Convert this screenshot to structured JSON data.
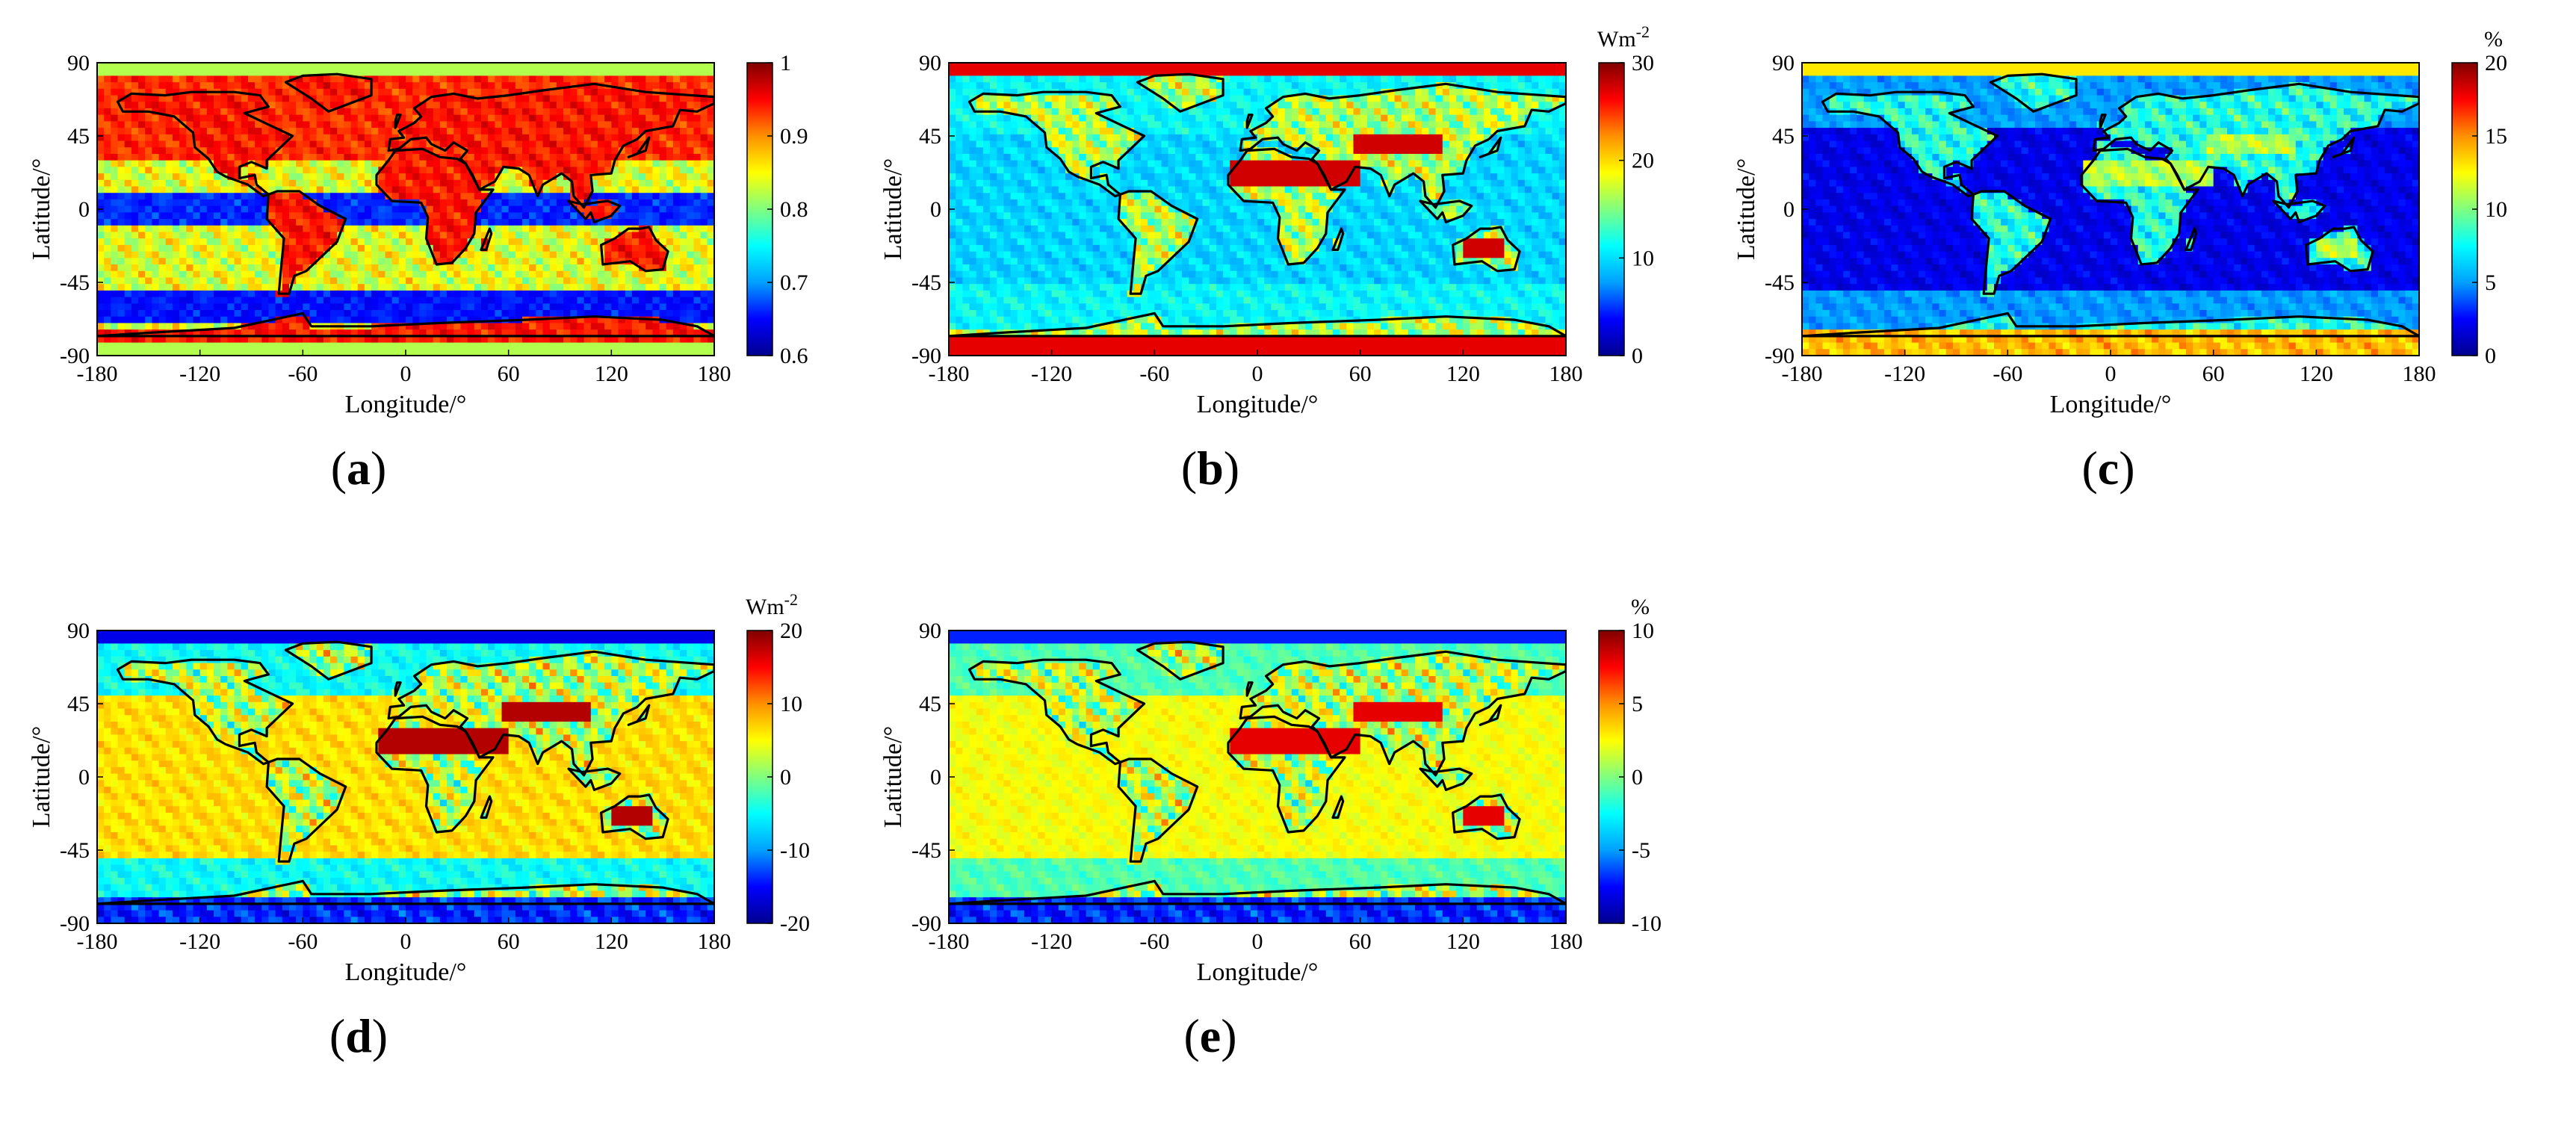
{
  "panels": [
    {
      "id": "a",
      "label": "a",
      "unit": "",
      "colorbar": {
        "min": 0.6,
        "max": 1,
        "ticks": [
          "1",
          "0.9",
          "0.8",
          "0.7",
          "0.6"
        ],
        "tick_values": [
          1,
          0.9,
          0.8,
          0.7,
          0.6
        ]
      },
      "dominant_pattern": "high values (0.85-1) over land and northern/southern mid-latitude oceans; low values (0.6-0.7) along a tropical band near the equator and the Southern Ocean near 60S"
    },
    {
      "id": "b",
      "label": "b",
      "unit": "Wm",
      "unit_exp": "-2",
      "colorbar": {
        "min": 0,
        "max": 30,
        "ticks": [
          "30",
          "20",
          "10",
          "0"
        ],
        "tick_values": [
          30,
          20,
          10,
          0
        ]
      },
      "dominant_pattern": "high values over Sahara, Arabia, central Asia, Australia and polar caps; moderate values over oceans"
    },
    {
      "id": "c",
      "label": "c",
      "unit": "%",
      "colorbar": {
        "min": 0,
        "max": 20,
        "ticks": [
          "20",
          "15",
          "10",
          "5",
          "0"
        ],
        "tick_values": [
          20,
          15,
          10,
          5,
          0
        ]
      },
      "dominant_pattern": "low values over most oceans; higher over land deserts, the Arctic and Antarctica"
    },
    {
      "id": "d",
      "label": "d",
      "unit": "Wm",
      "unit_exp": "-2",
      "colorbar": {
        "min": -20,
        "max": 20,
        "ticks": [
          "20",
          "10",
          "0",
          "-10",
          "-20"
        ],
        "tick_values": [
          20,
          10,
          0,
          -10,
          -20
        ]
      },
      "dominant_pattern": "strong positive over Sahara, Arabia and Australia; negative over high latitudes and Antarctica"
    },
    {
      "id": "e",
      "label": "e",
      "unit": "%",
      "colorbar": {
        "min": -10,
        "max": 10,
        "ticks": [
          "10",
          "5",
          "0",
          "-5",
          "-10"
        ],
        "tick_values": [
          10,
          5,
          0,
          -5,
          -10
        ]
      },
      "dominant_pattern": "positive over Sahara, Arabia and Australia; negative over polar regions"
    }
  ],
  "axes": {
    "xlabel": "Longitude/°",
    "ylabel": "Latitude/°",
    "xticks": [
      "-180",
      "-120",
      "-60",
      "0",
      "60",
      "120",
      "180"
    ],
    "xtick_values": [
      -180,
      -120,
      -60,
      0,
      60,
      120,
      180
    ],
    "yticks": [
      "90",
      "45",
      "0",
      "-45",
      "-90"
    ],
    "ytick_values": [
      90,
      45,
      0,
      -45,
      -90
    ]
  },
  "colormap": [
    "#00008f",
    "#0000ff",
    "#00a0ff",
    "#00ffff",
    "#80ff80",
    "#ffff00",
    "#ff9000",
    "#ff0000",
    "#800000"
  ]
}
